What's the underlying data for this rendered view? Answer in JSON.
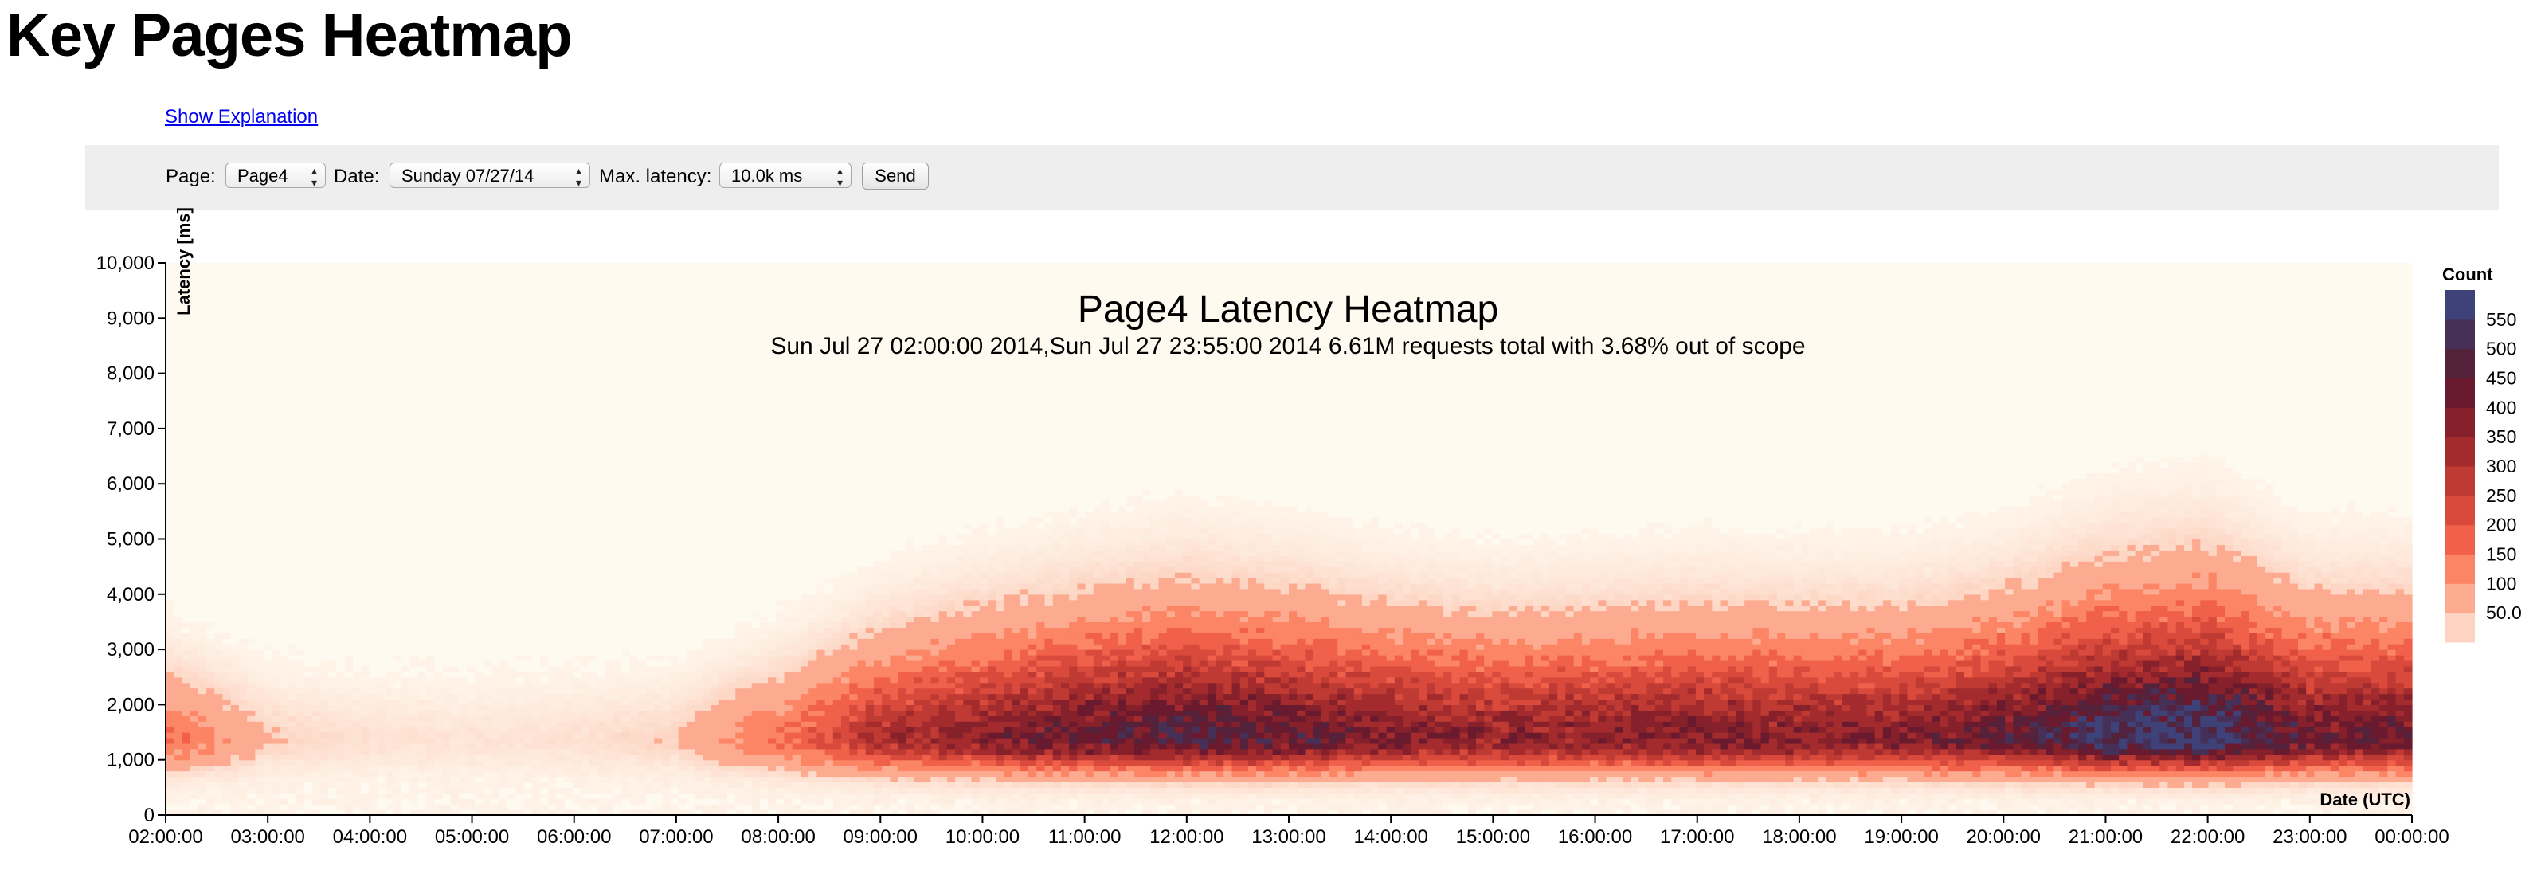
{
  "page": {
    "title": "Key Pages Heatmap",
    "explanation_link": "Show Explanation"
  },
  "form": {
    "page_label": "Page:",
    "page_value": "Page4",
    "date_label": "Date:",
    "date_value": "Sunday 07/27/14",
    "latency_label": "Max. latency:",
    "latency_value": "10.0k ms",
    "send_label": "Send"
  },
  "chart_data": {
    "type": "heatmap",
    "title": "Page4 Latency Heatmap",
    "subtitle": "Sun Jul 27 02:00:00 2014,Sun Jul 27 23:55:00 2014 6.61M requests total with 3.68% out of scope",
    "xlabel": "Date (UTC)",
    "ylabel": "Latency [ms]",
    "x_ticks": [
      "02:00:00",
      "03:00:00",
      "04:00:00",
      "05:00:00",
      "06:00:00",
      "07:00:00",
      "08:00:00",
      "09:00:00",
      "10:00:00",
      "11:00:00",
      "12:00:00",
      "13:00:00",
      "14:00:00",
      "15:00:00",
      "16:00:00",
      "17:00:00",
      "18:00:00",
      "19:00:00",
      "20:00:00",
      "21:00:00",
      "22:00:00",
      "23:00:00",
      "00:00:00"
    ],
    "y_ticks": [
      "0",
      "1,000",
      "2,000",
      "3,000",
      "4,000",
      "5,000",
      "6,000",
      "7,000",
      "8,000",
      "9,000",
      "10,000"
    ],
    "xlim": [
      "02:00:00",
      "00:00:00"
    ],
    "ylim": [
      0,
      10000
    ],
    "legend": {
      "title": "Count",
      "position": "right",
      "thresholds": [
        50,
        100,
        150,
        200,
        250,
        300,
        350,
        400,
        450,
        500,
        550
      ],
      "labels": [
        "550",
        "500",
        "450",
        "400",
        "350",
        "300",
        "250",
        "200",
        "150",
        "100",
        "50.0"
      ],
      "colors": [
        "#fdd4c2",
        "#fcab91",
        "#fc8565",
        "#f0604a",
        "#da4a3c",
        "#c03a34",
        "#a42b2d",
        "#86202a",
        "#6a1a2e",
        "#55223c",
        "#473058",
        "#3f4179"
      ]
    },
    "hourly_intensity": {
      "hours": [
        "02",
        "03",
        "04",
        "05",
        "06",
        "07",
        "08",
        "09",
        "10",
        "11",
        "12",
        "13",
        "14",
        "15",
        "16",
        "17",
        "18",
        "19",
        "20",
        "21",
        "22",
        "23"
      ],
      "peak_count": [
        150,
        40,
        25,
        20,
        25,
        40,
        140,
        290,
        370,
        430,
        470,
        440,
        380,
        350,
        360,
        380,
        370,
        370,
        430,
        540,
        580,
        420
      ]
    },
    "density_center_ms": 1400
  },
  "colors": {
    "background_cell": "#fffaf0",
    "form_background": "#eeeeee",
    "link": "#0000ee"
  }
}
